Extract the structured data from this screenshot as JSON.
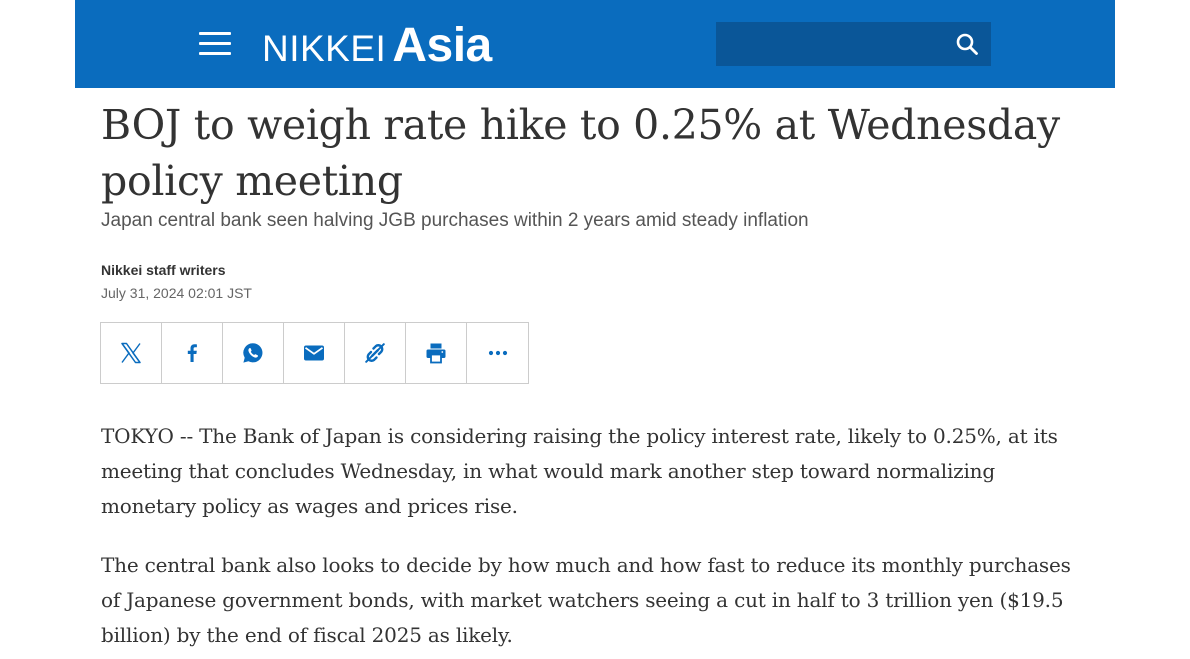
{
  "header": {
    "logo_primary": "NIKKEI",
    "logo_secondary": "Asia",
    "search": {
      "value": "",
      "placeholder": ""
    },
    "icons": {
      "menu": "hamburger-menu-icon",
      "search": "search-icon"
    },
    "colors": {
      "bar": "#0a6cbe",
      "search_field": "#0a5698"
    }
  },
  "article": {
    "headline": "BOJ to weigh rate hike to 0.25% at Wednesday policy meeting",
    "subhead": "Japan central bank seen halving JGB purchases within 2 years amid steady inflation",
    "byline": "Nikkei staff writers",
    "timestamp": "July 31, 2024 02:01 JST",
    "share_buttons": [
      "x-icon",
      "facebook-icon",
      "whatsapp-icon",
      "email-icon",
      "link-icon",
      "print-icon",
      "more-icon"
    ],
    "share_icon_color": "#0a6cbe",
    "paragraphs": [
      "TOKYO -- The Bank of Japan is considering raising the policy interest rate, likely to 0.25%, at its meeting that concludes Wednesday, in what would mark another step toward normalizing monetary policy as wages and prices rise.",
      "The central bank also looks to decide by how much and how fast to reduce its monthly purchases of Japanese government bonds, with market watchers seeing a cut in half to 3 trillion yen ($19.5 billion) by the end of fiscal 2025 as likely."
    ]
  }
}
